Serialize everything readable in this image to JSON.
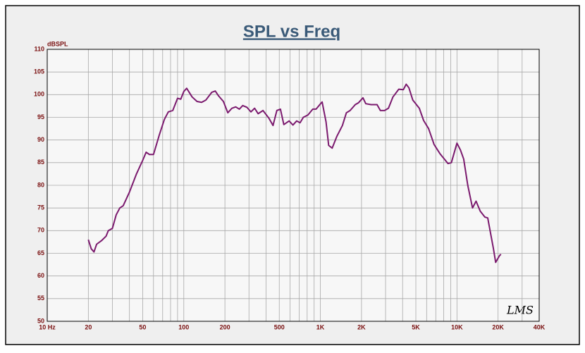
{
  "chart_data": {
    "type": "line",
    "title": "SPL vs Freq",
    "y_label": "dBSPL",
    "watermark": "LMS",
    "xscale": "log",
    "grid": true,
    "color": "#7b1a6e",
    "xlim": [
      10,
      40000
    ],
    "ylim": [
      50,
      110
    ],
    "xticks": [
      {
        "value": 10,
        "label": "10 Hz"
      },
      20,
      50,
      100,
      200,
      500,
      {
        "value": 1000,
        "label": "1K"
      },
      {
        "value": 2000,
        "label": "2K"
      },
      {
        "value": 5000,
        "label": "5K"
      },
      {
        "value": 10000,
        "label": "10K"
      },
      {
        "value": 20000,
        "label": "20K"
      },
      {
        "value": 40000,
        "label": "40K"
      }
    ],
    "x_minor_grid": [
      30,
      40,
      60,
      70,
      80,
      90,
      300,
      400,
      600,
      700,
      800,
      900,
      3000,
      4000,
      6000,
      7000,
      8000,
      9000,
      30000
    ],
    "yticks": [
      50,
      55,
      60,
      65,
      70,
      75,
      80,
      85,
      90,
      95,
      100,
      105,
      110
    ],
    "series": [
      {
        "name": "SPL",
        "x": [
          20,
          21,
          22,
          23,
          25,
          27,
          28,
          30,
          32,
          34,
          36,
          40,
          45,
          50,
          53,
          56,
          60,
          66,
          72,
          77,
          83,
          90,
          95,
          100,
          105,
          115,
          125,
          135,
          145,
          160,
          170,
          180,
          195,
          210,
          225,
          240,
          255,
          270,
          290,
          310,
          330,
          350,
          380,
          420,
          450,
          480,
          510,
          540,
          590,
          630,
          670,
          710,
          750,
          810,
          880,
          930,
          990,
          1030,
          1100,
          1150,
          1220,
          1320,
          1450,
          1550,
          1650,
          1800,
          1900,
          2050,
          2150,
          2350,
          2600,
          2750,
          2950,
          3150,
          3400,
          3750,
          4050,
          4250,
          4450,
          4750,
          5300,
          5700,
          6200,
          6800,
          7500,
          8600,
          9100,
          10000,
          10600,
          11200,
          12000,
          13000,
          13800,
          14800,
          16000,
          16800,
          18500,
          19200,
          20500,
          21000
        ],
        "values": [
          68,
          66,
          65.3,
          67,
          67.8,
          68.8,
          70,
          70.5,
          73.5,
          75,
          75.5,
          78.5,
          82.5,
          85.5,
          87.3,
          86.8,
          86.8,
          91,
          94.5,
          96.2,
          96.5,
          99.2,
          99,
          100.7,
          101.4,
          99.5,
          98.5,
          98.3,
          98.8,
          100.5,
          100.8,
          99.7,
          98.5,
          96,
          97,
          97.3,
          96.8,
          97.6,
          97.2,
          96.2,
          97,
          95.8,
          96.5,
          94.8,
          93.2,
          96.5,
          96.8,
          93.4,
          94.2,
          93.3,
          94.2,
          93.8,
          95,
          95.5,
          96.8,
          96.8,
          97.8,
          98.4,
          94,
          88.8,
          88.2,
          90.8,
          93.2,
          96,
          96.5,
          97.8,
          98.2,
          99.3,
          98,
          97.8,
          97.8,
          96.5,
          96.5,
          97,
          99.5,
          101.2,
          101.1,
          102.3,
          101.5,
          98.8,
          97,
          94.3,
          92.5,
          89,
          87,
          84.8,
          85,
          89.3,
          87.8,
          85.8,
          80,
          75,
          76.5,
          74.3,
          73,
          72.8,
          66,
          63,
          64.5,
          64.8
        ]
      }
    ]
  }
}
